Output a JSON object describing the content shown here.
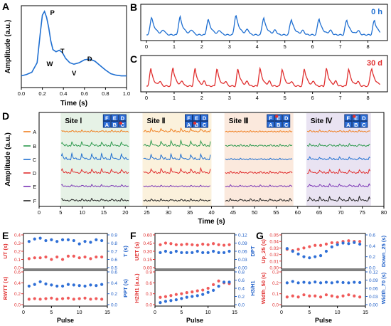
{
  "panel_letters": {
    "A": "A",
    "B": "B",
    "C": "C",
    "D": "D",
    "E": "E",
    "F": "F",
    "G": "G"
  },
  "colors": {
    "blue": "#1f6fd1",
    "red": "#e03030",
    "dot_red": "#f05a5a",
    "dot_blue": "#2f6fd6",
    "axis_red": "#e03030",
    "axis_blue": "#2060c8",
    "site_bg": [
      "#e6f2e6",
      "#fbf1dc",
      "#fbe9dd",
      "#e9e3f2"
    ],
    "lines": {
      "A": "#f07f20",
      "B": "#2f9a4f",
      "C": "#1f6fd1",
      "D": "#e03030",
      "E": "#7a33b5",
      "F": "#222222"
    },
    "sensor_fill": "#2e6fd8",
    "sensor_dot": "#e03030"
  },
  "chart_data": [
    {
      "panel": "A",
      "type": "line",
      "xlabel": "Time (s)",
      "ylabel": "Amplitude (a.u.)",
      "xlim": [
        0.0,
        1.0
      ],
      "xticks": [
        "0.0",
        "0.2",
        "0.4",
        "0.6",
        "0.8",
        "1.0"
      ],
      "peak_labels": [
        "P",
        "T",
        "W",
        "D",
        "V"
      ],
      "series": [
        {
          "x": [
            0.0,
            0.05,
            0.1,
            0.15,
            0.18,
            0.2,
            0.22,
            0.24,
            0.26,
            0.28,
            0.3,
            0.33,
            0.36,
            0.39,
            0.42,
            0.46,
            0.5,
            0.55,
            0.6,
            0.65,
            0.7,
            0.75,
            0.8,
            0.85,
            0.9,
            0.95,
            1.0
          ],
          "y": [
            0.12,
            0.14,
            0.17,
            0.3,
            0.7,
            0.95,
            1.0,
            0.92,
            0.78,
            0.6,
            0.48,
            0.45,
            0.47,
            0.44,
            0.36,
            0.3,
            0.28,
            0.3,
            0.34,
            0.35,
            0.32,
            0.26,
            0.2,
            0.15,
            0.13,
            0.12,
            0.12
          ]
        }
      ]
    },
    {
      "panel": "B",
      "type": "line",
      "annotation": "0 h",
      "xlim": [
        0,
        8.5
      ],
      "xticks": [
        "0",
        "1",
        "2",
        "3",
        "4",
        "5",
        "6",
        "7",
        "8"
      ],
      "series": [
        {
          "beats": [
            0.05,
            1.08,
            2.1,
            3.1,
            4.1,
            5.1,
            6.1,
            7.1,
            8.1
          ],
          "peaks": [
            0.7,
            0.72,
            0.62,
            0.8,
            0.68,
            0.62,
            0.65,
            0.6,
            0.58
          ]
        }
      ]
    },
    {
      "panel": "C",
      "type": "line",
      "annotation": "30 d",
      "xlim": [
        0,
        8.5
      ],
      "xticks": [
        "0",
        "1",
        "2",
        "3",
        "4",
        "5",
        "6",
        "7",
        "8"
      ],
      "series": [
        {
          "beats": [
            0.05,
            0.85,
            1.65,
            2.45,
            3.2,
            4.0,
            4.8,
            5.6,
            6.4,
            7.2,
            8.0
          ],
          "peaks": [
            0.72,
            0.75,
            0.7,
            0.72,
            0.7,
            0.72,
            0.7,
            0.72,
            0.72,
            0.7,
            0.7
          ]
        }
      ]
    },
    {
      "panel": "D",
      "type": "line",
      "xlabel": "Time (s)",
      "ylabel": "Amplitude (a.u.)",
      "xlim": [
        0,
        80
      ],
      "xticks": [
        "0",
        "5",
        "10",
        "15",
        "20",
        "25",
        "30",
        "35",
        "40",
        "45",
        "50",
        "55",
        "60",
        "65",
        "70",
        "75",
        "80"
      ],
      "rows": [
        "A",
        "B",
        "C",
        "D",
        "E",
        "F"
      ],
      "sites": [
        {
          "label": "Site Ⅰ",
          "range": [
            5,
            21
          ],
          "sensor_grid": [
            [
              "F",
              "E",
              "D"
            ],
            [
              "A",
              "B",
              "C"
            ]
          ],
          "active": "C",
          "amps": [
            0.2,
            0.6,
            0.9,
            0.6,
            0.25,
            0.3
          ]
        },
        {
          "label": "Site Ⅱ",
          "range": [
            24,
            40
          ],
          "sensor_grid": [
            [
              "F",
              "E",
              "D"
            ],
            [
              "A",
              "B",
              "C"
            ]
          ],
          "active": "B",
          "amps": [
            0.5,
            0.8,
            0.8,
            0.7,
            0.15,
            0.25
          ]
        },
        {
          "label": "Site Ⅲ",
          "range": [
            43,
            59
          ],
          "sensor_grid": [
            [
              "F",
              "E",
              "D"
            ],
            [
              "A",
              "B",
              "C"
            ]
          ],
          "active": "E",
          "amps": [
            0.1,
            0.2,
            0.15,
            0.25,
            0.2,
            0.3
          ]
        },
        {
          "label": "Site Ⅳ",
          "range": [
            62,
            77
          ],
          "sensor_grid": [
            [
              "F",
              "E",
              "D"
            ],
            [
              "A",
              "B",
              "C"
            ]
          ],
          "active": "E",
          "amps": [
            0.2,
            0.3,
            0.35,
            0.5,
            0.35,
            0.6
          ]
        }
      ]
    },
    {
      "panel": "E",
      "type": "scatter",
      "xlabel": "Pulse",
      "xlim": [
        0,
        15
      ],
      "xticks": [
        "0",
        "5",
        "10",
        "15"
      ],
      "top": {
        "left_label": "UT (s)",
        "left_ylim": [
          0.0,
          0.4
        ],
        "left_ticks": [
          "0.0",
          "0.1",
          "0.2",
          "0.3",
          "0.4"
        ],
        "right_label": "T (s)",
        "right_ylim": [
          0.5,
          0.9
        ],
        "right_ticks": [
          "0.5",
          "0.6",
          "0.7",
          "0.8",
          "0.9"
        ],
        "left_values": [
          0.11,
          0.12,
          0.12,
          0.13,
          0.1,
          0.13,
          0.1,
          0.14,
          0.14,
          0.12,
          0.13,
          0.11,
          0.13,
          0.13
        ],
        "right_values": [
          0.82,
          0.85,
          0.86,
          0.83,
          0.84,
          0.82,
          0.84,
          0.84,
          0.83,
          0.79,
          0.82,
          0.81,
          0.84,
          0.83
        ]
      },
      "bottom": {
        "left_label": "RWTT (s)",
        "left_ylim": [
          0.0,
          0.6
        ],
        "left_ticks": [
          "0.0",
          "0.2",
          "0.4",
          "0.6"
        ],
        "right_label": "PPT (s)",
        "right_ylim": [
          0.0,
          0.6
        ],
        "right_ticks": [
          "0.0",
          "0.2",
          "0.4",
          "0.6"
        ],
        "left_values": [
          0.1,
          0.11,
          0.1,
          0.11,
          0.12,
          0.1,
          0.11,
          0.12,
          0.1,
          0.11,
          0.12,
          0.1,
          0.11,
          0.1
        ],
        "right_values": [
          0.34,
          0.37,
          0.42,
          0.38,
          0.36,
          0.34,
          0.34,
          0.37,
          0.36,
          0.35,
          0.34,
          0.36,
          0.35,
          0.37
        ]
      }
    },
    {
      "panel": "F",
      "type": "scatter",
      "xlabel": "Pulse",
      "xlim": [
        0,
        15
      ],
      "xticks": [
        "0",
        "5",
        "10",
        "15"
      ],
      "top": {
        "left_label": "UET (s)",
        "left_ylim": [
          0.0,
          0.6
        ],
        "left_ticks": [
          "0.00",
          "0.15",
          "0.30",
          "0.45",
          "0.60"
        ],
        "right_label": "DPT",
        "right_ylim": [
          0.0,
          0.12
        ],
        "right_ticks": [
          "0.00",
          "0.03",
          "0.06",
          "0.09",
          "0.12"
        ],
        "left_values": [
          0.42,
          0.45,
          0.44,
          0.42,
          0.42,
          0.43,
          0.42,
          0.41,
          0.43,
          0.42,
          0.44,
          0.42,
          0.41,
          0.42
        ],
        "right_values": [
          0.055,
          0.06,
          0.055,
          0.06,
          0.055,
          0.055,
          0.055,
          0.06,
          0.055,
          0.055,
          0.06,
          0.055,
          0.055,
          0.06
        ]
      },
      "bottom": {
        "left_label": "H2/H1 (a.u.)",
        "left_ylim": [
          0.0,
          0.9
        ],
        "left_ticks": [
          "0.0",
          "0.3",
          "0.6",
          "0.9"
        ],
        "right_label": "H3/H1",
        "right_ylim": [
          0.0,
          0.8
        ],
        "right_ticks": [
          "0.0",
          "0.2",
          "0.4",
          "0.6",
          "0.8"
        ],
        "left_values": [
          0.2,
          0.22,
          0.25,
          0.28,
          0.3,
          0.33,
          0.35,
          0.38,
          0.4,
          0.45,
          0.55,
          0.65,
          0.6,
          0.58
        ],
        "right_values": [
          0.05,
          0.08,
          0.1,
          0.12,
          0.15,
          0.18,
          0.2,
          0.22,
          0.25,
          0.3,
          0.35,
          0.45,
          0.55,
          0.55
        ]
      }
    },
    {
      "panel": "G",
      "type": "scatter",
      "xlabel": "Pulse",
      "xlim": [
        0,
        15
      ],
      "xticks": [
        "0",
        "5",
        "10",
        "15"
      ],
      "top": {
        "left_label": "Up_25 (s)",
        "left_ylim": [
          0.0,
          0.05
        ],
        "left_ticks": [
          "0.00",
          "0.01",
          "0.02",
          "0.03",
          "0.04",
          "0.05"
        ],
        "right_label": "Down_25 (s)",
        "right_ylim": [
          0.0,
          0.6
        ],
        "right_ticks": [
          "0.0",
          "0.2",
          "0.4",
          "0.6"
        ],
        "left_values": [
          0.028,
          0.026,
          0.028,
          0.03,
          0.032,
          0.034,
          0.034,
          0.036,
          0.038,
          0.038,
          0.04,
          0.041,
          0.04,
          0.04
        ],
        "right_values": [
          0.35,
          0.3,
          0.25,
          0.2,
          0.18,
          0.2,
          0.22,
          0.3,
          0.38,
          0.42,
          0.45,
          0.44,
          0.46,
          0.43
        ]
      },
      "bottom": {
        "left_label": "Width_50 (s)",
        "left_ylim": [
          0.0,
          0.3
        ],
        "left_ticks": [
          "0.0",
          "0.1",
          "0.2",
          "0.3"
        ],
        "right_label": "Width_70 (s)",
        "right_ylim": [
          0.0,
          0.12
        ],
        "right_ticks": [
          "0.00",
          "0.03",
          "0.06",
          "0.09",
          "0.12"
        ],
        "left_values": [
          0.07,
          0.08,
          0.07,
          0.09,
          0.08,
          0.08,
          0.07,
          0.09,
          0.08,
          0.07,
          0.08,
          0.09,
          0.08,
          0.07
        ],
        "right_values": [
          0.08,
          0.085,
          0.08,
          0.082,
          0.08,
          0.083,
          0.08,
          0.082,
          0.08,
          0.083,
          0.081,
          0.08,
          0.082,
          0.081
        ]
      }
    }
  ]
}
